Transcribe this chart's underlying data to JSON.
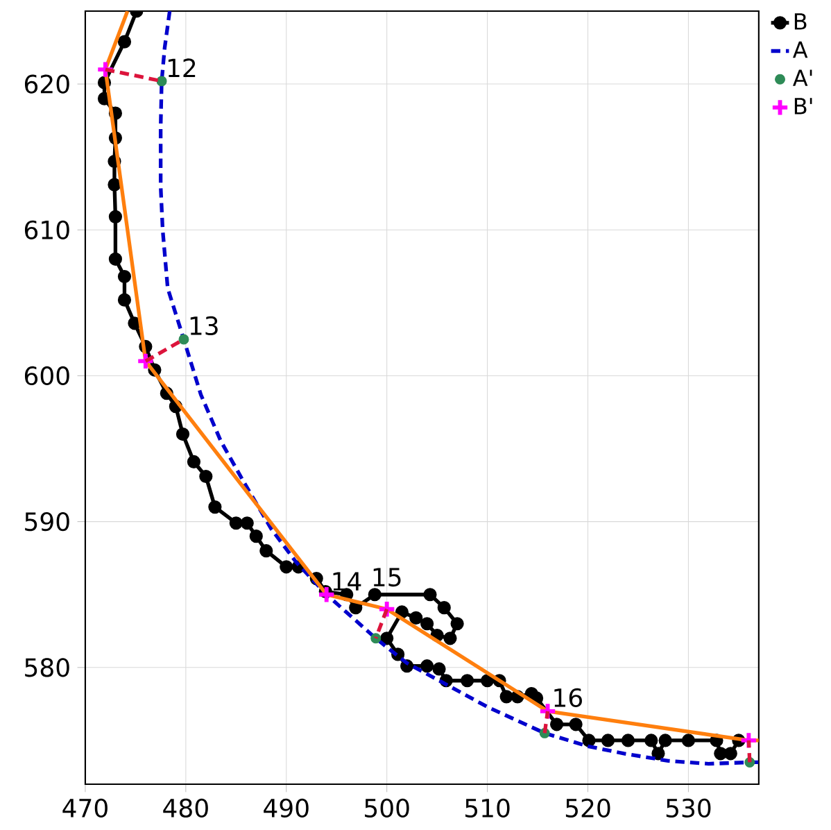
{
  "chart_data": {
    "type": "line",
    "xlim": [
      470,
      537
    ],
    "ylim": [
      572,
      625
    ],
    "xticks": [
      470,
      480,
      490,
      500,
      510,
      520,
      530
    ],
    "yticks": [
      580,
      590,
      600,
      610,
      620
    ],
    "grid": true,
    "legend": "top right",
    "series": [
      {
        "name": "B",
        "color": "#000000",
        "marker": "circle",
        "line_style": "solid",
        "x": [
          475.1,
          473.9,
          471.9,
          471.9,
          473.0,
          473.0,
          472.9,
          472.9,
          473.0,
          473.0,
          473.9,
          473.9,
          474.9,
          476.0,
          476.9,
          478.1,
          479.0,
          479.7,
          480.8,
          482.0,
          482.9,
          485.0,
          486.1,
          487.0,
          488.0,
          490.0,
          491.2,
          493.0,
          493.9,
          496.0,
          496.9,
          498.8,
          504.3,
          505.7,
          507.0,
          506.3,
          505.0,
          504.0,
          502.9,
          501.5,
          500.0,
          501.1,
          502.0,
          504.0,
          505.2,
          505.9,
          508.0,
          510.0,
          511.2,
          511.9,
          513.0,
          514.4,
          514.9,
          516.9,
          518.8,
          520.1,
          522.0,
          524.0,
          526.3,
          527.0,
          527.7,
          530.0,
          532.8,
          533.2,
          534.2,
          535.0
        ],
        "values": [
          625.0,
          622.9,
          620.1,
          619.0,
          618.0,
          616.3,
          614.7,
          613.1,
          610.9,
          608.0,
          606.8,
          605.2,
          603.6,
          602.0,
          600.4,
          598.8,
          597.9,
          596.0,
          594.1,
          593.1,
          591.0,
          589.9,
          589.9,
          589.0,
          588.0,
          586.9,
          586.9,
          586.1,
          585.2,
          585.0,
          584.1,
          585.0,
          585.0,
          584.1,
          583.0,
          582.0,
          582.2,
          583.0,
          583.4,
          583.8,
          582.0,
          580.9,
          580.1,
          580.1,
          579.9,
          579.1,
          579.1,
          579.1,
          579.1,
          578.0,
          578.0,
          578.2,
          577.9,
          576.1,
          576.1,
          575.0,
          575.0,
          575.0,
          575.0,
          574.1,
          575.0,
          575.0,
          575.0,
          574.1,
          574.1,
          575.0
        ]
      },
      {
        "name": "A",
        "color": "#0000cc",
        "marker": "none",
        "line_style": "dashed",
        "x": [
          478.4,
          477.9,
          477.6,
          477.5,
          477.5,
          477.7,
          478.2,
          479.8,
          481.5,
          483.5,
          485.7,
          488.5,
          491.0,
          494.0,
          498.9,
          502.0,
          505.2,
          510.0,
          515.7,
          520.0,
          523.6,
          528.0,
          532.0,
          536.1,
          537.0
        ],
        "values": [
          625.0,
          622.5,
          620.2,
          617.0,
          613.0,
          610.0,
          606.0,
          602.5,
          598.7,
          595.5,
          592.8,
          589.5,
          587.2,
          585.0,
          582.0,
          580.3,
          579.1,
          577.3,
          575.5,
          574.6,
          574.1,
          573.6,
          573.4,
          573.5,
          573.5
        ]
      },
      {
        "color": "#ff7f0e",
        "marker": "none",
        "line_style": "solid",
        "x": [
          474.2,
          472.0,
          476.0,
          494.0,
          500.0,
          516.0,
          536.0,
          537.0
        ],
        "values": [
          625.0,
          621.0,
          601.0,
          585.0,
          584.0,
          577.0,
          575.0,
          575.0
        ]
      },
      {
        "name": "A'",
        "type": "scatter",
        "color": "#2e8b57",
        "marker": "circle",
        "x": [
          477.6,
          479.8,
          498.9,
          515.7,
          536.1
        ],
        "values": [
          620.2,
          602.5,
          582.0,
          575.5,
          573.5
        ]
      },
      {
        "name": "B'",
        "type": "scatter",
        "color": "#ff00ff",
        "marker": "cross",
        "x": [
          472.0,
          476.0,
          494.0,
          500.0,
          516.0,
          536.0
        ],
        "values": [
          621.0,
          601.0,
          585.0,
          584.0,
          577.0,
          575.0
        ]
      },
      {
        "color": "#dc143c",
        "marker": "none",
        "line_style": "dashed",
        "x": [
          472.0,
          477.6
        ],
        "values": [
          621.0,
          620.2
        ]
      },
      {
        "color": "#dc143c",
        "marker": "none",
        "line_style": "dashed",
        "x": [
          476.0,
          479.8
        ],
        "values": [
          601.0,
          602.5
        ]
      },
      {
        "color": "#dc143c",
        "marker": "none",
        "line_style": "dashed",
        "x": [
          500.0,
          498.9
        ],
        "values": [
          584.0,
          582.0
        ]
      },
      {
        "color": "#dc143c",
        "marker": "none",
        "line_style": "dashed",
        "x": [
          515.7,
          516.0
        ],
        "values": [
          575.5,
          577.0
        ]
      },
      {
        "color": "#dc143c",
        "marker": "none",
        "line_style": "dashed",
        "x": [
          536.1,
          536.0
        ],
        "values": [
          573.5,
          575.0
        ]
      }
    ],
    "annotations": [
      {
        "text": "12",
        "x": 477.6,
        "y": 620.2
      },
      {
        "text": "13",
        "x": 479.8,
        "y": 602.5
      },
      {
        "text": "14",
        "x": 494.0,
        "y": 585.0
      },
      {
        "text": "15",
        "x": 500.0,
        "y": 584.0
      },
      {
        "text": "16",
        "x": 516.0,
        "y": 577.0
      }
    ]
  }
}
